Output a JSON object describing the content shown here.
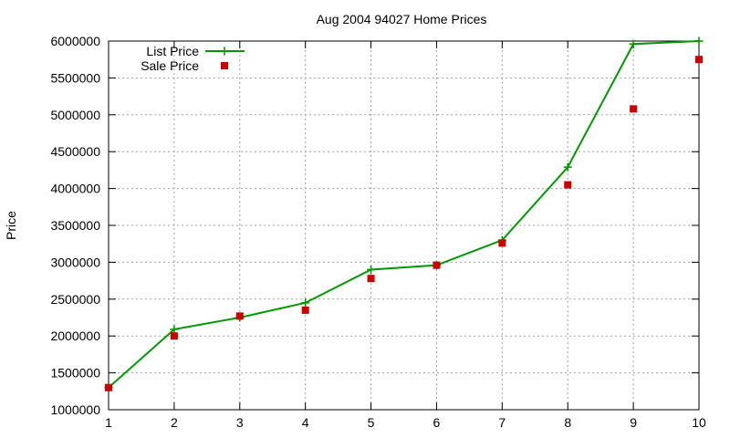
{
  "chart_data": {
    "type": "line",
    "title": "Aug 2004 94027 Home Prices",
    "xlabel": "",
    "ylabel": "Price",
    "x": [
      1,
      2,
      3,
      4,
      5,
      6,
      7,
      8,
      9,
      10
    ],
    "xlim": [
      1,
      10
    ],
    "ylim": [
      1000000,
      6000000
    ],
    "x_ticks": [
      1,
      2,
      3,
      4,
      5,
      6,
      7,
      8,
      9,
      10
    ],
    "y_ticks": [
      1000000,
      1500000,
      2000000,
      2500000,
      3000000,
      3500000,
      4000000,
      4500000,
      5000000,
      5500000,
      6000000
    ],
    "grid": true,
    "legend_position": "top-left",
    "series": [
      {
        "name": "List Price",
        "style": "line-with-plus-markers",
        "color": "#009900",
        "values": [
          1300000,
          2090000,
          2250000,
          2450000,
          2900000,
          2960000,
          3300000,
          4290000,
          5960000,
          6000000
        ]
      },
      {
        "name": "Sale Price",
        "style": "square-markers",
        "color": "#cc0000",
        "values": [
          1300000,
          2000000,
          2270000,
          2350000,
          2780000,
          2960000,
          3260000,
          4050000,
          5080000,
          5750000
        ]
      }
    ]
  }
}
